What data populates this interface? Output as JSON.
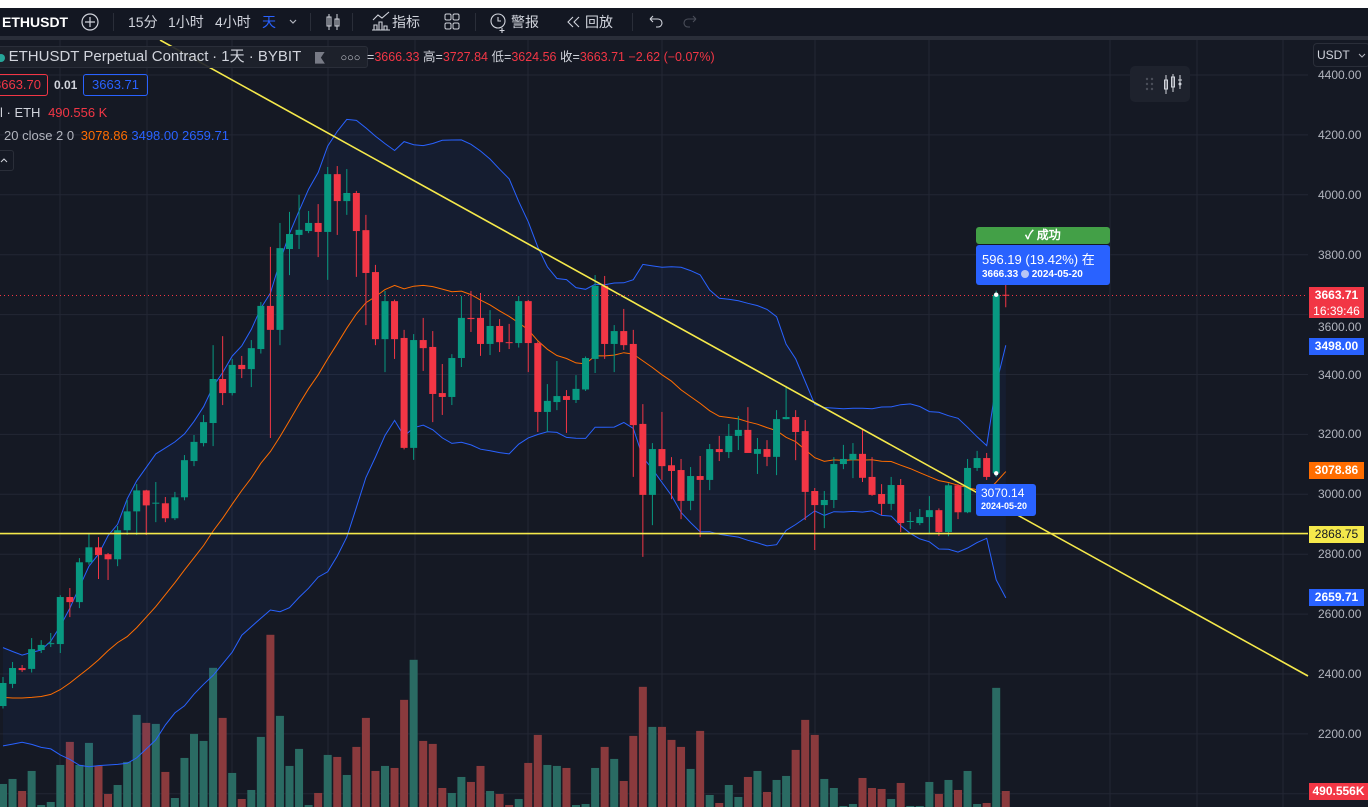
{
  "toolbar": {
    "symbol": "ETHUSDT",
    "intervals": [
      "15分",
      "1小时",
      "4小时",
      "天"
    ],
    "active_interval": "天",
    "indicators_label": "指标",
    "alert_label": "警报",
    "replay_label": "回放",
    "icons": [
      "plus-circle-icon",
      "chevron-down-icon",
      "candles-icon",
      "indicators-icon",
      "layout-grid-icon",
      "alarm-icon",
      "replay-icon",
      "undo-icon",
      "redo-icon"
    ]
  },
  "legend": {
    "title": "ETHUSDT Perpetual Contract",
    "interval_exchange": "· 1天 · BYBIT",
    "ohlc": [
      {
        "label": "",
        "value": "3666.33"
      },
      {
        "label": "高",
        "value": "3727.84"
      },
      {
        "label": "低",
        "value": "3624.56"
      },
      {
        "label": "收",
        "value": "3663.71"
      }
    ],
    "change": "−2.62 (−0.07%)",
    "sell_price": "3663.70",
    "spread": "0.01",
    "buy_price": "3663.71",
    "volume_label": "l · ETH",
    "volume_value": "490.556 K",
    "bb_label": "20 close 2 0",
    "bb_basis": "3078.86",
    "bb_upper": "3498.00",
    "bb_lower": "2659.71",
    "collapse_icon": "chevron-up-icon"
  },
  "currency_select": "USDT",
  "price_axis": {
    "ticks": [
      "4400.00",
      "4200.00",
      "4000.00",
      "3800.00",
      "3600.00",
      "3400.00",
      "3200.00",
      "3000.00",
      "2800.00",
      "2600.00",
      "2400.00",
      "2200.00"
    ],
    "last_price": "3663.71",
    "countdown": "16:39:46",
    "bb_upper_tag": "3498.00",
    "bb_basis_tag": "3078.86",
    "hline_tag": "2868.75",
    "bb_lower_tag": "2659.71",
    "volume_tag": "490.556K"
  },
  "measure": {
    "status": "成功",
    "change": "596.19 (19.42%) 在",
    "end_price": "3666.33",
    "end_date": "2024-05-20",
    "start_price": "3070.14",
    "start_date": "2024-05-20"
  },
  "colors": {
    "up": "#089981",
    "down": "#f23645",
    "vol_up": "#2a6b63",
    "vol_down": "#8a3a3d",
    "bb_band": "#2962ff",
    "bb_basis": "#ff6d00",
    "drawing": "#f5e94b",
    "accent": "#2962ff",
    "success": "#43a047"
  },
  "chart_data": {
    "type": "candlestick",
    "symbol": "ETHUSDT",
    "ylim": [
      2000,
      4450
    ],
    "grid": true,
    "ohlc_fields": [
      "open",
      "high",
      "low",
      "close"
    ],
    "candles": [
      [
        2293,
        2390,
        2285,
        2370
      ],
      [
        2367,
        2440,
        2353,
        2420
      ],
      [
        2420,
        2430,
        2407,
        2413
      ],
      [
        2417,
        2520,
        2405,
        2483
      ],
      [
        2480,
        2513,
        2470,
        2497
      ],
      [
        2500,
        2537,
        2490,
        2503
      ],
      [
        2500,
        2663,
        2470,
        2657
      ],
      [
        2657,
        2687,
        2590,
        2640
      ],
      [
        2640,
        2787,
        2620,
        2773
      ],
      [
        2773,
        2871,
        2765,
        2823
      ],
      [
        2823,
        2857,
        2717,
        2797
      ],
      [
        2800,
        2804,
        2714,
        2783
      ],
      [
        2783,
        2894,
        2760,
        2880
      ],
      [
        2880,
        2981,
        2864,
        2943
      ],
      [
        2943,
        3034,
        2864,
        3013
      ],
      [
        3013,
        3015,
        2864,
        2963
      ],
      [
        2970,
        3041,
        2907,
        2972
      ],
      [
        2970,
        2991,
        2907,
        2920
      ],
      [
        2920,
        3008,
        2914,
        2990
      ],
      [
        2990,
        3131,
        2980,
        3114
      ],
      [
        3111,
        3198,
        3094,
        3175
      ],
      [
        3171,
        3265,
        3160,
        3241
      ],
      [
        3238,
        3498,
        3161,
        3385
      ],
      [
        3385,
        3528,
        3298,
        3338
      ],
      [
        3338,
        3452,
        3330,
        3432
      ],
      [
        3432,
        3462,
        3388,
        3418
      ],
      [
        3418,
        3515,
        3358,
        3488
      ],
      [
        3485,
        3642,
        3470,
        3629
      ],
      [
        3629,
        3826,
        3188,
        3549
      ],
      [
        3549,
        3906,
        3498,
        3822
      ],
      [
        3819,
        3943,
        3732,
        3869
      ],
      [
        3866,
        4000,
        3819,
        3883
      ],
      [
        3879,
        3946,
        3872,
        3906
      ],
      [
        3906,
        3969,
        3792,
        3876
      ],
      [
        3876,
        4093,
        3716,
        4069
      ],
      [
        4069,
        4096,
        3866,
        3979
      ],
      [
        3979,
        4086,
        3933,
        4006
      ],
      [
        4006,
        4013,
        3726,
        3879
      ],
      [
        3882,
        3933,
        3565,
        3739
      ],
      [
        3742,
        3766,
        3498,
        3518
      ],
      [
        3518,
        3679,
        3408,
        3645
      ],
      [
        3645,
        3650,
        3452,
        3518
      ],
      [
        3522,
        3549,
        3150,
        3155
      ],
      [
        3155,
        3535,
        3115,
        3515
      ],
      [
        3515,
        3589,
        3412,
        3488
      ],
      [
        3492,
        3545,
        3241,
        3335
      ],
      [
        3338,
        3435,
        3265,
        3325
      ],
      [
        3325,
        3468,
        3298,
        3455
      ],
      [
        3455,
        3662,
        3425,
        3589
      ],
      [
        3589,
        3679,
        3542,
        3585
      ],
      [
        3589,
        3672,
        3462,
        3502
      ],
      [
        3502,
        3615,
        3465,
        3562
      ],
      [
        3562,
        3585,
        3475,
        3508
      ],
      [
        3508,
        3569,
        3485,
        3505
      ],
      [
        3505,
        3662,
        3490,
        3645
      ],
      [
        3645,
        3649,
        3408,
        3505
      ],
      [
        3505,
        3510,
        3208,
        3275
      ],
      [
        3275,
        3368,
        3208,
        3312
      ],
      [
        3308,
        3445,
        3281,
        3328
      ],
      [
        3328,
        3348,
        3205,
        3315
      ],
      [
        3315,
        3398,
        3305,
        3352
      ],
      [
        3350,
        3460,
        3345,
        3455
      ],
      [
        3452,
        3732,
        3405,
        3696
      ],
      [
        3696,
        3729,
        3452,
        3502
      ],
      [
        3502,
        3565,
        3408,
        3545
      ],
      [
        3545,
        3619,
        3482,
        3498
      ],
      [
        3502,
        3549,
        3058,
        3231
      ],
      [
        3235,
        3301,
        2791,
        2998
      ],
      [
        2998,
        3171,
        2897,
        3151
      ],
      [
        3151,
        3275,
        3048,
        3094
      ],
      [
        3097,
        3124,
        2984,
        3078
      ],
      [
        3081,
        3118,
        2917,
        2978
      ],
      [
        2978,
        3091,
        2947,
        3061
      ],
      [
        3061,
        3128,
        2857,
        3048
      ],
      [
        3048,
        3168,
        3014,
        3151
      ],
      [
        3151,
        3195,
        3111,
        3141
      ],
      [
        3141,
        3235,
        3121,
        3195
      ],
      [
        3195,
        3261,
        3148,
        3215
      ],
      [
        3215,
        3291,
        3145,
        3138
      ],
      [
        3135,
        3188,
        3068,
        3151
      ],
      [
        3151,
        3181,
        3094,
        3125
      ],
      [
        3125,
        3281,
        3064,
        3251
      ],
      [
        3251,
        3362,
        3250,
        3258
      ],
      [
        3258,
        3281,
        3114,
        3208
      ],
      [
        3211,
        3248,
        2914,
        3008
      ],
      [
        3011,
        3021,
        2814,
        2964
      ],
      [
        2964,
        3011,
        2887,
        2981
      ],
      [
        2981,
        3124,
        2954,
        3101
      ],
      [
        3101,
        3165,
        3084,
        3118
      ],
      [
        3115,
        3171,
        3054,
        3135
      ],
      [
        3135,
        3218,
        3041,
        3055
      ],
      [
        3058,
        3124,
        2995,
        2998
      ],
      [
        3001,
        3034,
        2931,
        2968
      ],
      [
        2968,
        3058,
        2947,
        3031
      ],
      [
        3031,
        3051,
        2874,
        2904
      ],
      [
        2908,
        2941,
        2884,
        2911
      ],
      [
        2904,
        2951,
        2897,
        2924
      ],
      [
        2924,
        2994,
        2867,
        2947
      ],
      [
        2947,
        2953,
        2861,
        2874
      ],
      [
        2874,
        3037,
        2860,
        3030
      ],
      [
        3030,
        3034,
        2917,
        2940
      ],
      [
        2940,
        3118,
        2937,
        3088
      ],
      [
        3088,
        3145,
        3078,
        3121
      ],
      [
        3121,
        3138,
        3048,
        3058
      ],
      [
        3070.14,
        3680,
        3058,
        3666.33
      ],
      [
        3666.33,
        3727.84,
        3624.56,
        3663.71
      ]
    ],
    "volume_k": [
      706,
      860,
      491,
      1105,
      61,
      154,
      1289,
      1996,
      1289,
      1965,
      1259,
      399,
      675,
      1382,
      2824,
      2579,
      2548,
      1075,
      276,
      1504,
      2241,
      2026,
      4267,
      2732,
      1044,
      246,
      522,
      2149,
      5280,
      2794,
      1259,
      1781,
      61,
      430,
      1596,
      1535,
      982,
      1842,
      2732,
      1105,
      1259,
      1197,
      3285,
      4513,
      2026,
      1934,
      583,
      430,
      921,
      768,
      1259,
      491,
      399,
      61,
      246,
      1351,
      2210,
      1289,
      1259,
      1197,
      61,
      92,
      1197,
      1842,
      1474,
      798,
      2180,
      3684,
      2456,
      2456,
      2057,
      1842,
      1167,
      2333,
      368,
      123,
      675,
      307,
      921,
      1105,
      461,
      829,
      952,
      1750,
      2671,
      2210,
      860,
      583,
      31,
      92,
      890,
      583,
      553,
      246,
      737,
      31,
      31,
      768,
      399,
      829,
      522,
      1105,
      92,
      123,
      3653,
      490.556
    ],
    "bollinger": {
      "length": 20,
      "source": "close",
      "mult": 2,
      "leading_upper": [
        2488,
        2475,
        2463,
        2472,
        2480,
        2510,
        2560,
        2620,
        2690,
        2760,
        2800,
        2862,
        2900,
        2985,
        3045,
        3090,
        3135,
        3155,
        3175
      ],
      "leading_basis": [
        2322,
        2320,
        2320,
        2322,
        2325,
        2332,
        2348,
        2370,
        2395,
        2420,
        2447,
        2478,
        2505,
        2525,
        2555,
        2590,
        2625,
        2665,
        2705
      ],
      "leading_lower": [
        2160,
        2166,
        2172,
        2165,
        2155,
        2150,
        2130,
        2115,
        2095,
        2090,
        2094,
        2096,
        2098,
        2102,
        2120,
        2150,
        2180,
        2230,
        2270
      ]
    },
    "horizontal_line": 2868.75,
    "last_price": 3663.71
  }
}
